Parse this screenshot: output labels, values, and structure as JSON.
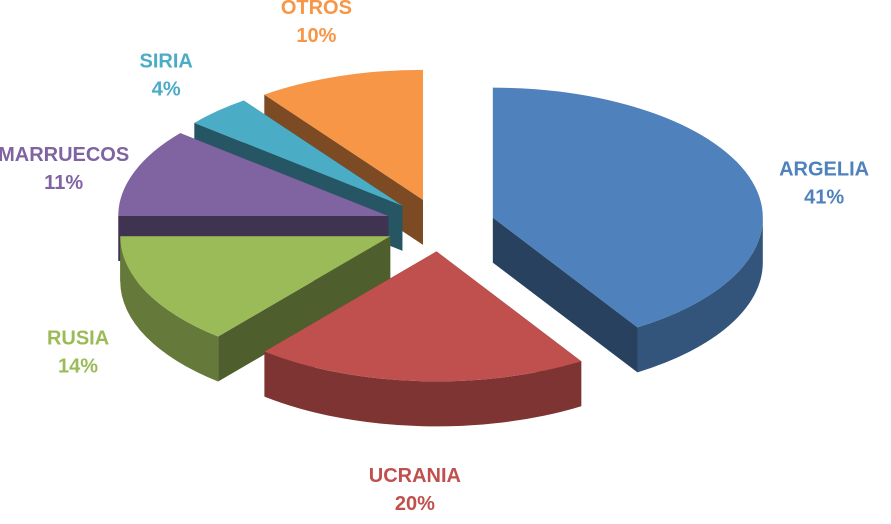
{
  "chart_data": {
    "type": "pie3d",
    "categories": [
      "ARGELIA",
      "UCRANIA",
      "RUSIA",
      "MARRUECOS",
      "SIRIA",
      "OTROS"
    ],
    "values": [
      41,
      20,
      14,
      11,
      4,
      10
    ],
    "value_labels": [
      "41%",
      "20%",
      "14%",
      "11%",
      "4%",
      "10%"
    ],
    "colors": [
      "#4f81bd",
      "#c0504d",
      "#9bbb59",
      "#8064a2",
      "#4bacc6",
      "#f79646"
    ]
  }
}
